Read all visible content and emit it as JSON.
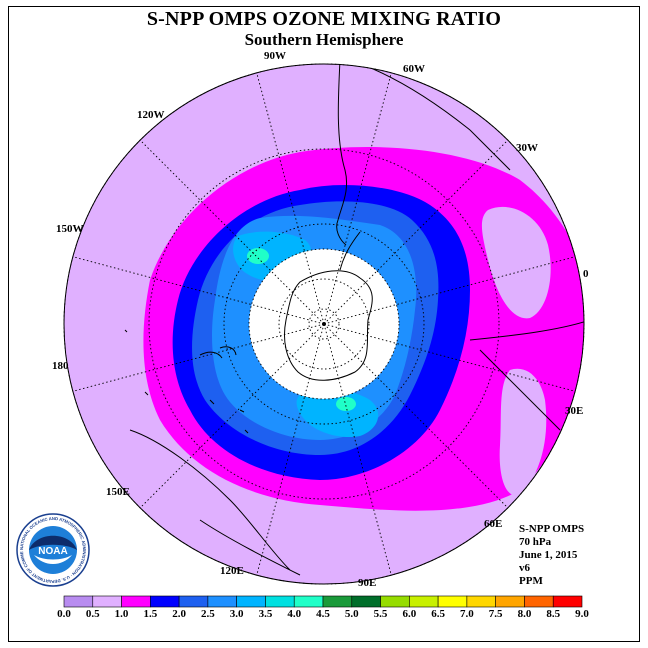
{
  "title": "S-NPP OMPS OZONE MIXING RATIO",
  "subtitle": "Southern Hemisphere",
  "longitude_labels": [
    "90W",
    "60W",
    "30W",
    "0",
    "30E",
    "60E",
    "90E",
    "120E",
    "150E",
    "180",
    "150W",
    "120W"
  ],
  "info": {
    "instrument": "S-NPP OMPS",
    "level": "70 hPa",
    "date": "June 1, 2015",
    "version": "v6",
    "units": "PPM"
  },
  "logo": {
    "text": "NOAA",
    "ring_text": "NATIONAL OCEANIC AND ATMOSPHERIC ADMINISTRATION · U.S. DEPARTMENT OF COMMERCE"
  },
  "colorbar": {
    "ticks": [
      "0.0",
      "0.5",
      "1.0",
      "1.5",
      "2.0",
      "2.5",
      "3.0",
      "3.5",
      "4.0",
      "4.5",
      "5.0",
      "5.5",
      "6.0",
      "6.5",
      "7.0",
      "7.5",
      "8.0",
      "8.5",
      "9.0"
    ],
    "colors": [
      "#b88cf0",
      "#e0b0ff",
      "#ff00ff",
      "#0000ff",
      "#1e60f0",
      "#1e90ff",
      "#00b4ff",
      "#00e0e0",
      "#20ffc8",
      "#1a9a3a",
      "#006e2a",
      "#96dc00",
      "#c8f000",
      "#ffff00",
      "#ffd700",
      "#ffa500",
      "#ff6400",
      "#ff0000",
      "#8b4513"
    ]
  },
  "map": {
    "projection": "polar-stereographic-south",
    "colors": {
      "bg": "#e0b0ff",
      "magenta": "#ff00ff",
      "blue": "#0000ff",
      "mid_blue": "#1e60f0",
      "light_blue": "#1e90ff",
      "cyan": "#00b4ff",
      "aqua": "#20ffc8",
      "polar_mask": "#ffffff"
    }
  }
}
